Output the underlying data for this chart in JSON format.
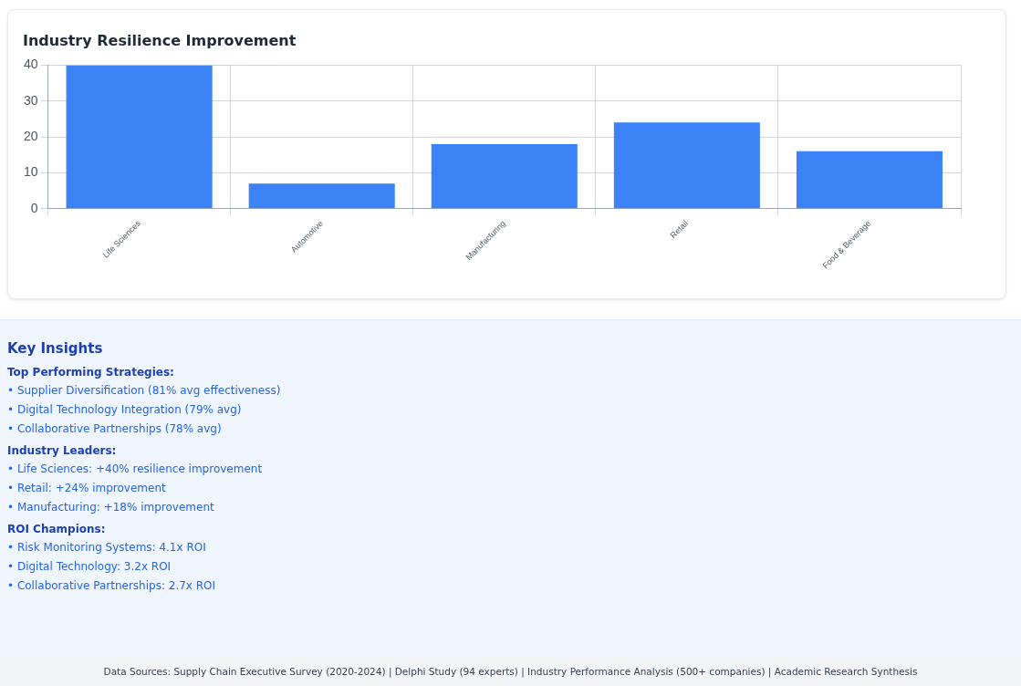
{
  "chart_data": {
    "type": "bar",
    "title": "Industry Resilience Improvement",
    "categories": [
      "Life Sciences",
      "Automotive",
      "Manufacturing",
      "Retail",
      "Food & Beverage"
    ],
    "values": [
      40,
      7,
      18,
      24,
      16
    ],
    "color": "#3b82f6",
    "ylim": [
      0,
      40
    ],
    "yticks": [
      0,
      10,
      20,
      30,
      40
    ],
    "grid": true,
    "annotations": [
      "Key Insights",
      "Top Performing Strategies:",
      "• Supplier Diversification (81% avg effectiveness)",
      "• Digital Technology Integration (79% avg)",
      "• Collaborative Partnerships (78% avg)",
      "Industry Leaders:",
      "• Life Sciences: +40% resilience improvement",
      "• Retail: +24% improvement",
      "• Manufacturing: +18% improvement",
      "ROI Champions:",
      "• Risk Monitoring Systems: 4.1x ROI",
      "• Digital Technology: 3.2x ROI",
      "• Collaborative Partnerships: 2.7x ROI",
      "Data Sources: Supply Chain Executive Survey (2020-2024) | Delphi Study (94 experts) | Industry Performance Analysis (500+ companies) | Academic Research Synthesis"
    ]
  }
}
